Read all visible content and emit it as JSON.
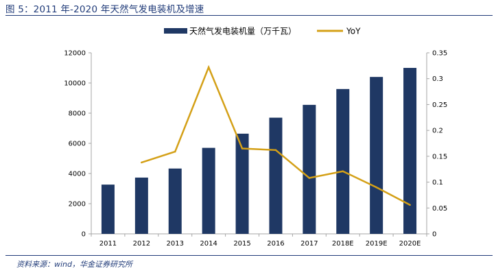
{
  "figure": {
    "title": "图 5：2011 年-2020 年天然气发电装机及增速",
    "source": "资料来源：wind，华金证券研究所"
  },
  "colors": {
    "bar": "#1f3864",
    "line": "#d4a017",
    "axis": "#a6a6a6",
    "text": "#000000",
    "accent": "#1f3a78"
  },
  "chart_data": {
    "type": "bar+line",
    "title": "",
    "categories": [
      "2011",
      "2012",
      "2013",
      "2014",
      "2015",
      "2016",
      "2017",
      "2018E",
      "2019E",
      "2020E"
    ],
    "series": [
      {
        "name": "天然气发电装机量（万千瓦）",
        "type": "bar",
        "axis": "left",
        "values": [
          3265,
          3730,
          4330,
          5700,
          6640,
          7700,
          8550,
          9600,
          10400,
          11000
        ]
      },
      {
        "name": "YoY",
        "type": "line",
        "axis": "right",
        "values": [
          null,
          0.138,
          0.159,
          0.322,
          0.165,
          0.162,
          0.108,
          0.121,
          0.09,
          0.056
        ]
      }
    ],
    "y_left": {
      "min": 0,
      "max": 12000,
      "ticks": [
        "0",
        "2000",
        "4000",
        "6000",
        "8000",
        "10000",
        "12000"
      ]
    },
    "y_right": {
      "min": 0,
      "max": 0.35,
      "ticks": [
        "0",
        "0.05",
        "0.1",
        "0.15",
        "0.2",
        "0.25",
        "0.3",
        "0.35"
      ]
    },
    "legend_position": "top-center",
    "grid": false
  }
}
